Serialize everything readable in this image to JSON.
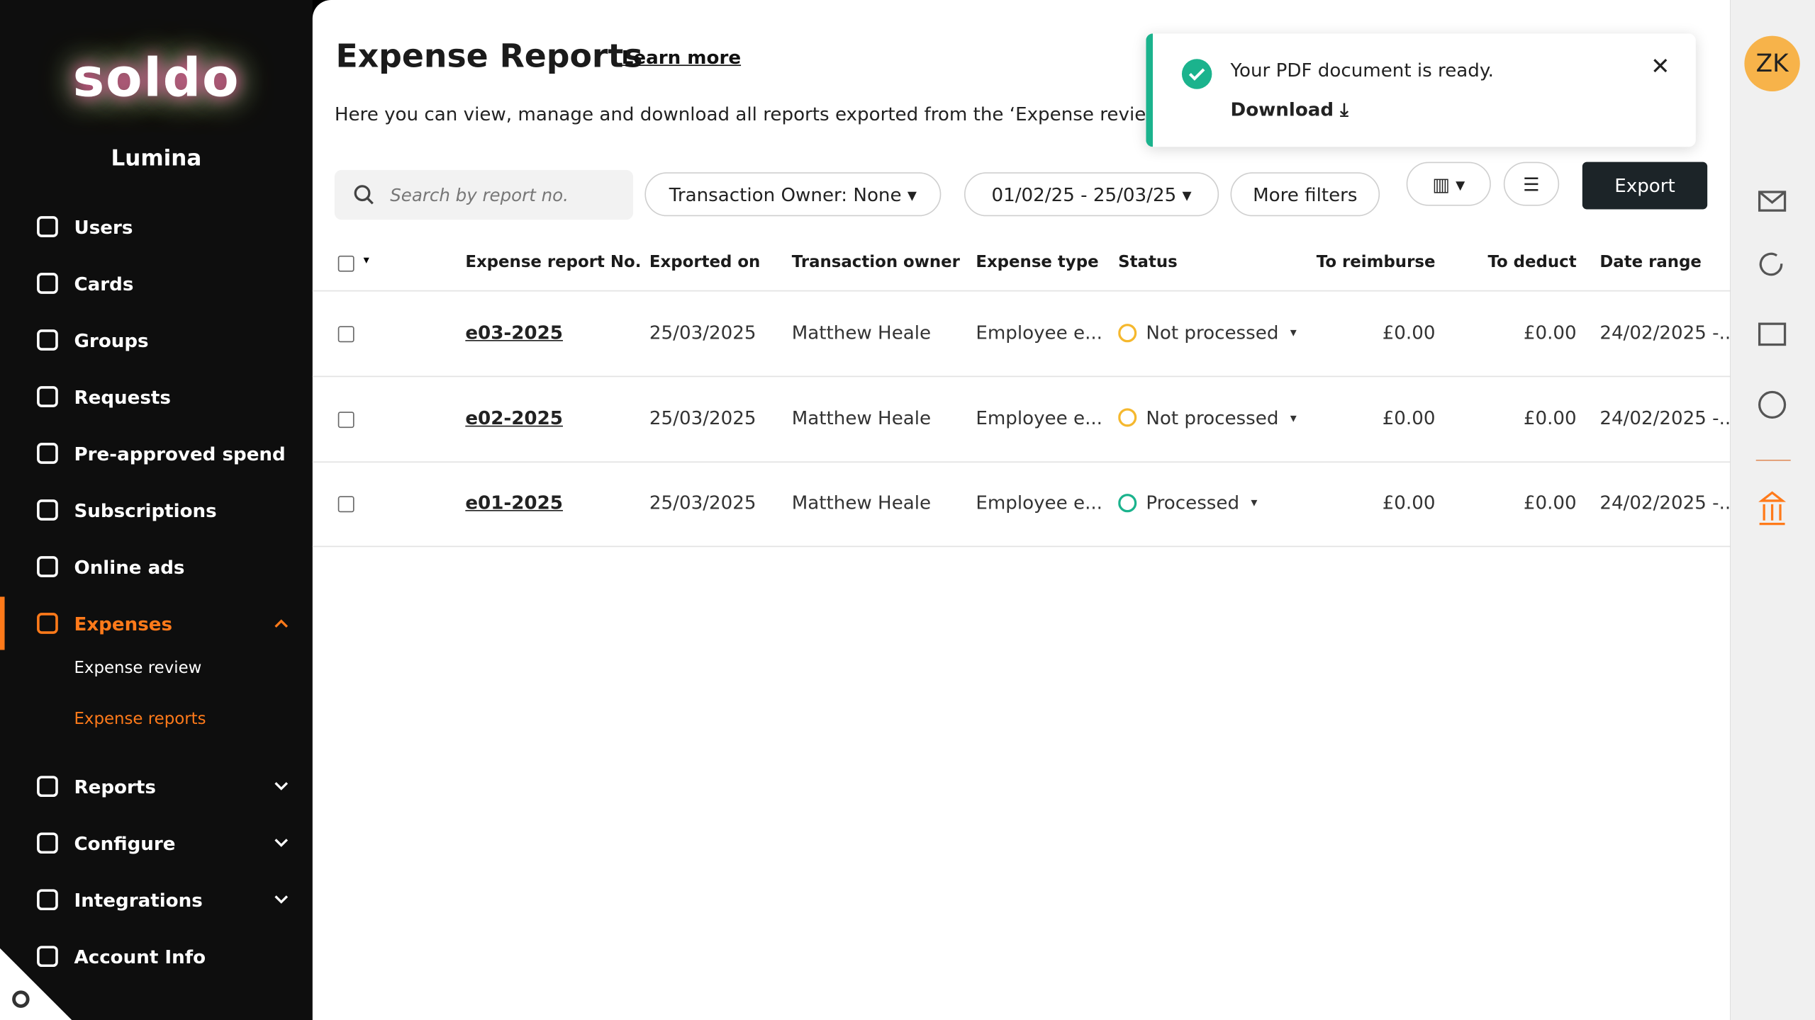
{
  "brand": "soldo",
  "org": "Lumina",
  "nav": [
    {
      "label": "Users"
    },
    {
      "label": "Cards"
    },
    {
      "label": "Groups"
    },
    {
      "label": "Requests"
    },
    {
      "label": "Pre-approved spend"
    },
    {
      "label": "Subscriptions"
    },
    {
      "label": "Online ads"
    },
    {
      "label": "Expenses",
      "active": true,
      "expanded": true,
      "children": [
        {
          "label": "Expense review"
        },
        {
          "label": "Expense reports",
          "active": true
        }
      ]
    },
    {
      "label": "Reports",
      "expandable": true
    },
    {
      "label": "Configure",
      "expandable": true
    },
    {
      "label": "Integrations",
      "expandable": true
    },
    {
      "label": "Account Info"
    }
  ],
  "header": {
    "title": "Expense Reports",
    "link": "Learn more",
    "description": "Here you can view, manage and download all reports exported from the ‘Expense review’ sec"
  },
  "toast": {
    "message": "Your PDF document is ready.",
    "action": "Download"
  },
  "filters": {
    "search_placeholder": "Search by report no.",
    "owner": "Transaction Owner: None",
    "dates": "01/02/25 - 25/03/25",
    "more": "More filters",
    "export": "Export"
  },
  "table": {
    "columns": [
      "Expense report No.",
      "Exported on",
      "Transaction owner",
      "Expense type",
      "Status",
      "To reimburse",
      "To deduct",
      "Date range"
    ],
    "rows": [
      {
        "cells": [
          "e03-2025",
          "25/03/2025",
          "Matthew Heale",
          "Employee e...",
          "Not processed",
          "£0.00",
          "£0.00",
          "24/02/2025 -..."
        ],
        "status_color": "#f5b82e"
      },
      {
        "cells": [
          "e02-2025",
          "25/03/2025",
          "Matthew Heale",
          "Employee e...",
          "Not processed",
          "£0.00",
          "£0.00",
          "24/02/2025 -..."
        ],
        "status_color": "#f5b82e"
      },
      {
        "cells": [
          "e01-2025",
          "25/03/2025",
          "Matthew Heale",
          "Employee e...",
          "Processed",
          "£0.00",
          "£0.00",
          "24/02/2025 -..."
        ],
        "status_color": "#1bb38d"
      }
    ]
  },
  "user": {
    "initials": "ZK"
  }
}
